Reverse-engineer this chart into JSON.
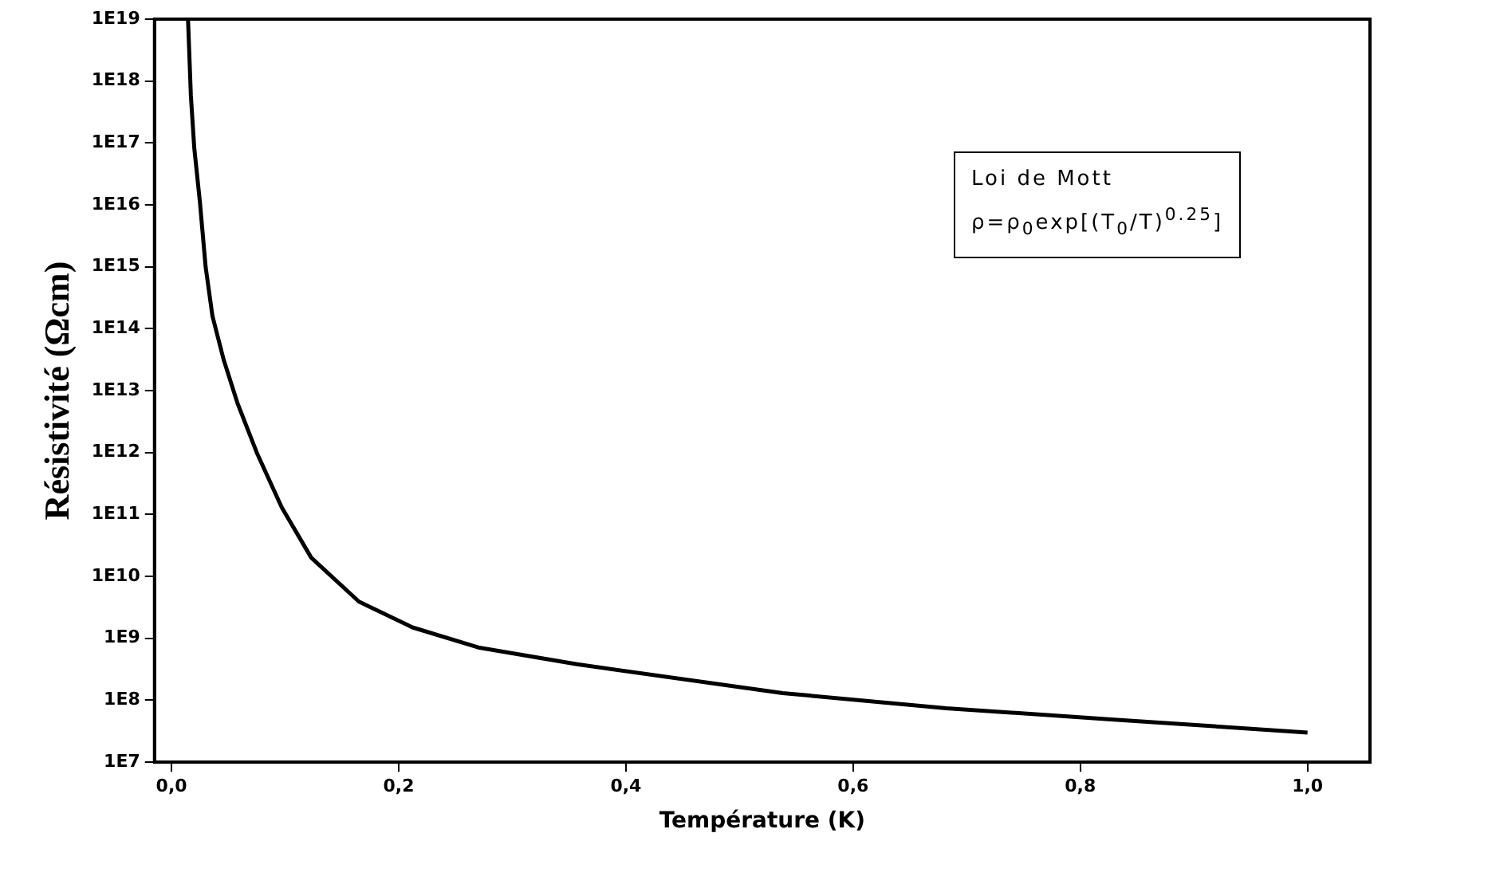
{
  "chart_data": {
    "type": "line",
    "xlabel": "Température (K)",
    "ylabel": "Résistivité (Ωcm)",
    "annotations": [
      "Loi de Mott",
      "ρ=ρ$_{0}$exp[(T$_{0}$/T)$^{0.25}$]"
    ],
    "log": "y",
    "grid": false,
    "legend": false,
    "marker": "none",
    "line_style": "solid",
    "xlim": [
      -0.015,
      1.055
    ],
    "ylim": [
      10000000.0,
      1e+19
    ],
    "xticks": [
      {
        "value": 0,
        "label": "0,0"
      },
      {
        "value": 0.2,
        "label": "0,2"
      },
      {
        "value": 0.4,
        "label": "0,4"
      },
      {
        "value": 0.6,
        "label": "0,6"
      },
      {
        "value": 0.8,
        "label": "0,8"
      },
      {
        "value": 1.0,
        "label": "1,0"
      }
    ],
    "yticks": [
      {
        "value": 10000000.0,
        "label": "1E7"
      },
      {
        "value": 100000000.0,
        "label": "1E8"
      },
      {
        "value": 1000000000.0,
        "label": "1E9"
      },
      {
        "value": 10000000000.0,
        "label": "1E10"
      },
      {
        "value": 100000000000.0,
        "label": "1E11"
      },
      {
        "value": 1000000000000.0,
        "label": "1E12"
      },
      {
        "value": 10000000000000.0,
        "label": "1E13"
      },
      {
        "value": 100000000000000.0,
        "label": "1E14"
      },
      {
        "value": 1000000000000000.0,
        "label": "1E15"
      },
      {
        "value": 1e+16,
        "label": "1E16"
      },
      {
        "value": 1e+17,
        "label": "1E17"
      },
      {
        "value": 1e+18,
        "label": "1E18"
      },
      {
        "value": 1e+19,
        "label": "1E19"
      }
    ],
    "series": [
      {
        "color": "#000000",
        "x": [
          0.0145,
          0.017,
          0.02,
          0.025,
          0.03,
          0.036,
          0.046,
          0.058,
          0.075,
          0.097,
          0.123,
          0.165,
          0.212,
          0.27,
          0.357,
          0.538,
          0.682,
          0.827,
          1.0
        ],
        "values": [
          1e+19,
          5.9e+17,
          8.3e+16,
          1.1e+16,
          1000000000000000.0,
          160000000000000.0,
          31000000000000.0,
          6300000000000.0,
          1000000000000.0,
          130000000000.0,
          20000000000.0,
          3900000000.0,
          1500000000.0,
          710000000.0,
          380000000.0,
          130000000.0,
          74000000.0,
          49000000.0,
          30000000.0
        ]
      }
    ]
  }
}
